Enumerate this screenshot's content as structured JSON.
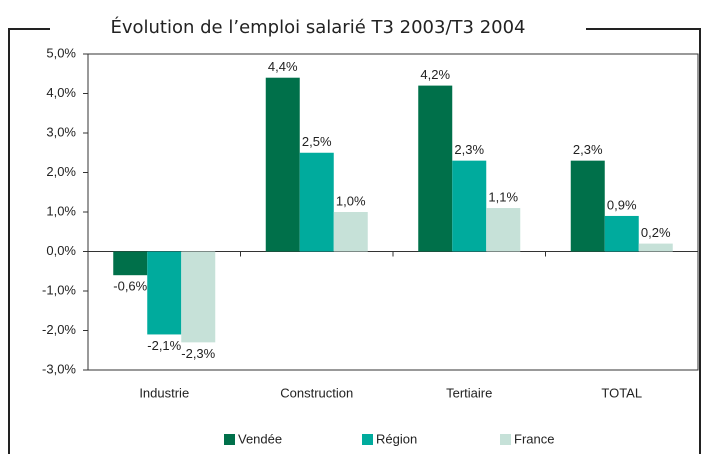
{
  "chart_data": {
    "type": "bar",
    "title": "Évolution de l’emploi salarié T3 2003/T3 2004",
    "categories": [
      "Industrie",
      "Construction",
      "Tertiaire",
      "TOTAL"
    ],
    "series": [
      {
        "name": "Vendée",
        "color": "#00704a",
        "values": [
          -0.6,
          4.4,
          4.2,
          2.3
        ],
        "value_labels": [
          "-0,6%",
          "4,4%",
          "4,2%",
          "2,3%"
        ]
      },
      {
        "name": "Région",
        "color": "#00ab9d",
        "values": [
          -2.1,
          2.5,
          2.3,
          0.9
        ],
        "value_labels": [
          "-2,1%",
          "2,5%",
          "2,3%",
          "0,9%"
        ]
      },
      {
        "name": "France",
        "color": "#c6e1d8",
        "values": [
          -2.3,
          1.0,
          1.1,
          0.2
        ],
        "value_labels": [
          "-2,3%",
          "1,0%",
          "1,1%",
          "0,2%"
        ]
      }
    ],
    "ylim": [
      -3,
      5
    ],
    "yticks": [
      {
        "value": -3,
        "label": "-3,0%"
      },
      {
        "value": -2,
        "label": "-2,0%"
      },
      {
        "value": -1,
        "label": "-1,0%"
      },
      {
        "value": 0,
        "label": "0,0%"
      },
      {
        "value": 1,
        "label": "1,0%"
      },
      {
        "value": 2,
        "label": "2,0%"
      },
      {
        "value": 3,
        "label": "3,0%"
      },
      {
        "value": 4,
        "label": "4,0%"
      },
      {
        "value": 5,
        "label": "5,0%"
      }
    ],
    "legend": "bottom"
  }
}
